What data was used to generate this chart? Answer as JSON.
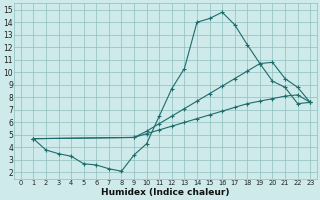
{
  "xlabel": "Humidex (Indice chaleur)",
  "background_color": "#ceeaea",
  "grid_color": "#8fbfbf",
  "line_color": "#1e6b6b",
  "xlim": [
    -0.5,
    23.5
  ],
  "ylim": [
    1.5,
    15.5
  ],
  "xticks": [
    0,
    1,
    2,
    3,
    4,
    5,
    6,
    7,
    8,
    9,
    10,
    11,
    12,
    13,
    14,
    15,
    16,
    17,
    18,
    19,
    20,
    21,
    22,
    23
  ],
  "yticks": [
    2,
    3,
    4,
    5,
    6,
    7,
    8,
    9,
    10,
    11,
    12,
    13,
    14,
    15
  ],
  "curve1_x": [
    1,
    2,
    3,
    4,
    5,
    6,
    7,
    8,
    9,
    10,
    11,
    12,
    13,
    14,
    15,
    16,
    17,
    18,
    19,
    20,
    21,
    22,
    23
  ],
  "curve1_y": [
    4.7,
    3.8,
    3.5,
    3.3,
    2.7,
    2.6,
    2.3,
    2.1,
    3.4,
    4.3,
    6.5,
    8.7,
    10.3,
    14.0,
    14.3,
    14.8,
    13.8,
    12.2,
    10.7,
    9.3,
    8.8,
    7.5,
    7.6
  ],
  "curve2_x": [
    1,
    9,
    10,
    11,
    12,
    13,
    14,
    15,
    16,
    17,
    18,
    19,
    20,
    21,
    22,
    23
  ],
  "curve2_y": [
    4.7,
    4.8,
    5.1,
    5.4,
    5.7,
    6.0,
    6.3,
    6.6,
    6.9,
    7.2,
    7.5,
    7.7,
    7.9,
    8.1,
    8.2,
    7.6
  ],
  "curve3_x": [
    1,
    9,
    10,
    11,
    12,
    13,
    14,
    15,
    16,
    17,
    18,
    19,
    20,
    21,
    22,
    23
  ],
  "curve3_y": [
    4.7,
    4.8,
    5.3,
    5.9,
    6.5,
    7.1,
    7.7,
    8.3,
    8.9,
    9.5,
    10.1,
    10.7,
    10.8,
    9.5,
    8.8,
    7.6
  ]
}
